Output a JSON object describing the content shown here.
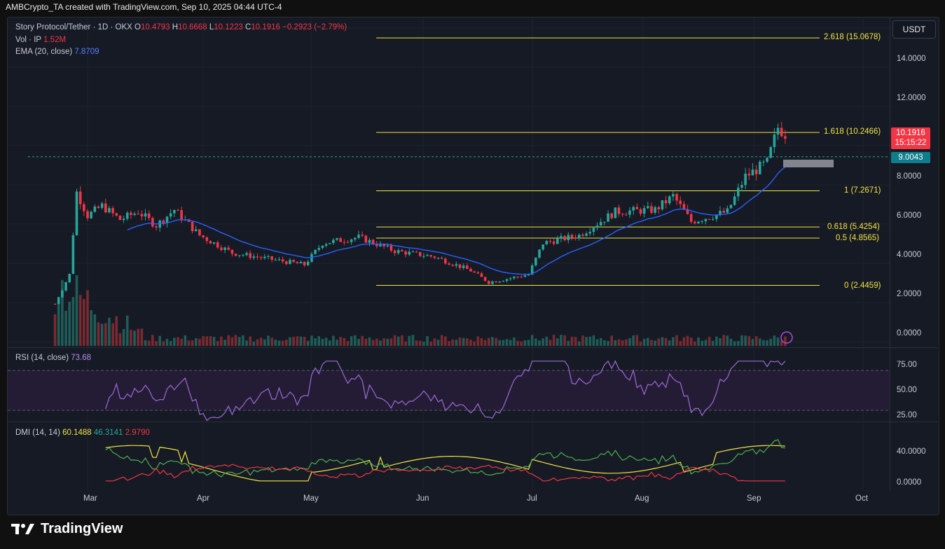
{
  "header": {
    "text": "AMBCrypto_TA created with TradingView.com, Sep 10, 2025 04:44 UTC-4"
  },
  "legend": {
    "symbol": "Story Protocol/Tether · 1D · OKX",
    "o_label": "O",
    "o": "10.4793",
    "h_label": "H",
    "h": "10.6668",
    "l_label": "L",
    "l": "10.1223",
    "c_label": "C",
    "c": "10.1916",
    "change": "−0.2923 (−2.79%)",
    "vol_label": "Vol · IP",
    "vol": "1.52M",
    "ema_label": "EMA (20, close)",
    "ema": "7.8709"
  },
  "currency_button": "USDT",
  "price_axis": [
    "14.0000",
    "12.0000",
    "8.0000",
    "6.0000",
    "4.0000",
    "2.0000",
    "0.0000"
  ],
  "fib_levels": [
    "2.618 (15.0678)",
    "1.618 (10.2466)",
    "1 (7.2671)",
    "0.618 (5.4254)",
    "0.5 (4.8565)",
    "0 (2.4459)"
  ],
  "last_price": {
    "value": "10.1916",
    "countdown": "15:15:22"
  },
  "prev_level": "9.0043",
  "rsi": {
    "label": "RSI (14, close)",
    "value": "73.68",
    "axis": [
      "75.00",
      "50.00",
      "25.00"
    ]
  },
  "dmi": {
    "label": "DMI (14, 14)",
    "adx": "60.1488",
    "plus": "46.3141",
    "minus": "2.9790",
    "axis": [
      "40.0000",
      "0.0000"
    ]
  },
  "time_axis": [
    "Mar",
    "Apr",
    "May",
    "Jun",
    "Jul",
    "Aug",
    "Sep",
    "Oct"
  ],
  "brand": "TradingView",
  "colors": {
    "up": "#26a69a",
    "down": "#f23645",
    "ema": "#2962ff",
    "fib": "#f0e442",
    "rsi": "#9c6ad6"
  },
  "chart_data": {
    "type": "candlestick",
    "symbol": "Story Protocol/Tether",
    "interval": "1D",
    "close_path": [
      [
        "Feb 20",
        1.5
      ],
      [
        "Feb 24",
        3.0
      ],
      [
        "Feb 26",
        7.2
      ],
      [
        "Mar 1",
        6.0
      ],
      [
        "Mar 5",
        6.5
      ],
      [
        "Mar 10",
        5.8
      ],
      [
        "Mar 15",
        6.2
      ],
      [
        "Mar 20",
        5.5
      ],
      [
        "Mar 25",
        6.3
      ],
      [
        "Apr 1",
        5.0
      ],
      [
        "Apr 10",
        4.1
      ],
      [
        "Apr 20",
        3.8
      ],
      [
        "Apr 30",
        3.5
      ],
      [
        "May 5",
        4.6
      ],
      [
        "May 15",
        4.9
      ],
      [
        "May 25",
        4.2
      ],
      [
        "Jun 5",
        3.9
      ],
      [
        "Jun 15",
        3.2
      ],
      [
        "Jun 20",
        2.6
      ],
      [
        "Jul 1",
        3.0
      ],
      [
        "Jul 5",
        4.6
      ],
      [
        "Jul 15",
        5.0
      ],
      [
        "Jul 25",
        6.2
      ],
      [
        "Aug 5",
        6.3
      ],
      [
        "Aug 10",
        7.0
      ],
      [
        "Aug 15",
        5.7
      ],
      [
        "Aug 25",
        6.2
      ],
      [
        "Aug 30",
        8.0
      ],
      [
        "Sep 5",
        8.7
      ],
      [
        "Sep 8",
        10.5
      ],
      [
        "Sep 10",
        10.1916
      ]
    ],
    "ema20_last": 7.8709,
    "y_range": [
      -0.5,
      15.5
    ]
  }
}
